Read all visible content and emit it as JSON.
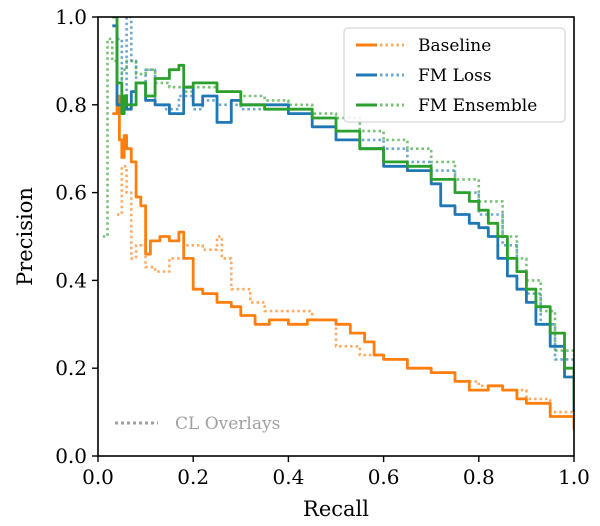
{
  "chart_data": {
    "type": "line",
    "xlabel": "Recall",
    "ylabel": "Precision",
    "xlim": [
      0,
      1
    ],
    "ylim": [
      0,
      1
    ],
    "x_ticks": [
      "0.0",
      "0.2",
      "0.4",
      "0.6",
      "0.8",
      "1.0"
    ],
    "y_ticks": [
      "0.0",
      "0.2",
      "0.4",
      "0.6",
      "0.8",
      "1.0"
    ],
    "grid": false,
    "legend_position": "top-right",
    "overlay_note": "CL Overlays",
    "series": [
      {
        "name": "Baseline",
        "color": "#ff7f0e",
        "style": "solid",
        "x": [
          0.03,
          0.04,
          0.045,
          0.05,
          0.055,
          0.06,
          0.07,
          0.08,
          0.09,
          0.1,
          0.11,
          0.13,
          0.15,
          0.17,
          0.18,
          0.2,
          0.22,
          0.25,
          0.28,
          0.3,
          0.33,
          0.36,
          0.4,
          0.44,
          0.48,
          0.5,
          0.53,
          0.56,
          0.58,
          0.6,
          0.65,
          0.7,
          0.75,
          0.78,
          0.82,
          0.85,
          0.88,
          0.9,
          0.95,
          1.0
        ],
        "y": [
          0.78,
          0.82,
          0.72,
          0.68,
          0.73,
          0.7,
          0.67,
          0.59,
          0.57,
          0.46,
          0.49,
          0.5,
          0.49,
          0.51,
          0.45,
          0.38,
          0.37,
          0.35,
          0.34,
          0.32,
          0.3,
          0.31,
          0.3,
          0.31,
          0.31,
          0.3,
          0.28,
          0.26,
          0.23,
          0.22,
          0.2,
          0.19,
          0.17,
          0.15,
          0.16,
          0.15,
          0.13,
          0.12,
          0.09,
          0.06
        ]
      },
      {
        "name": "Baseline (CL overlay)",
        "color": "#ff7f0e",
        "style": "dotted",
        "x": [
          0.04,
          0.05,
          0.06,
          0.07,
          0.08,
          0.1,
          0.12,
          0.15,
          0.18,
          0.22,
          0.25,
          0.26,
          0.28,
          0.32,
          0.35,
          0.4,
          0.45,
          0.5,
          0.55,
          0.6,
          0.65,
          0.7,
          0.75,
          0.8,
          0.85,
          0.9,
          0.95,
          1.0
        ],
        "y": [
          0.55,
          0.66,
          0.6,
          0.45,
          0.48,
          0.43,
          0.42,
          0.45,
          0.48,
          0.47,
          0.5,
          0.45,
          0.38,
          0.35,
          0.33,
          0.33,
          0.31,
          0.25,
          0.23,
          0.22,
          0.2,
          0.19,
          0.17,
          0.16,
          0.15,
          0.13,
          0.1,
          0.07
        ]
      },
      {
        "name": "FM Loss",
        "color": "#1f77b4",
        "style": "solid",
        "x": [
          0.03,
          0.04,
          0.05,
          0.06,
          0.07,
          0.08,
          0.1,
          0.12,
          0.15,
          0.18,
          0.2,
          0.22,
          0.25,
          0.28,
          0.3,
          0.35,
          0.4,
          0.45,
          0.5,
          0.55,
          0.6,
          0.65,
          0.7,
          0.72,
          0.75,
          0.78,
          0.8,
          0.82,
          0.84,
          0.86,
          0.88,
          0.9,
          0.92,
          0.95,
          0.98,
          1.0
        ],
        "y": [
          0.98,
          0.8,
          0.82,
          0.79,
          0.83,
          0.85,
          0.81,
          0.8,
          0.78,
          0.84,
          0.8,
          0.82,
          0.76,
          0.81,
          0.8,
          0.8,
          0.78,
          0.75,
          0.72,
          0.7,
          0.66,
          0.65,
          0.62,
          0.57,
          0.55,
          0.53,
          0.52,
          0.5,
          0.45,
          0.41,
          0.38,
          0.35,
          0.3,
          0.25,
          0.18,
          0.1
        ]
      },
      {
        "name": "FM Loss (CL overlay)",
        "color": "#1f77b4",
        "style": "dotted",
        "x": [
          0.04,
          0.05,
          0.06,
          0.07,
          0.08,
          0.1,
          0.12,
          0.14,
          0.17,
          0.2,
          0.22,
          0.25,
          0.3,
          0.35,
          0.4,
          0.45,
          0.5,
          0.55,
          0.6,
          0.65,
          0.7,
          0.75,
          0.8,
          0.85,
          0.88,
          0.9,
          0.93,
          0.96,
          1.0
        ],
        "y": [
          0.95,
          0.82,
          1.0,
          0.9,
          0.85,
          0.88,
          0.8,
          0.79,
          0.82,
          0.79,
          0.81,
          0.8,
          0.79,
          0.8,
          0.79,
          0.77,
          0.74,
          0.72,
          0.7,
          0.67,
          0.65,
          0.6,
          0.55,
          0.48,
          0.42,
          0.37,
          0.3,
          0.22,
          0.12
        ]
      },
      {
        "name": "FM Ensemble",
        "color": "#2ca02c",
        "style": "solid",
        "x": [
          0.03,
          0.04,
          0.05,
          0.055,
          0.06,
          0.08,
          0.1,
          0.12,
          0.15,
          0.17,
          0.18,
          0.2,
          0.25,
          0.3,
          0.35,
          0.4,
          0.45,
          0.5,
          0.55,
          0.6,
          0.65,
          0.7,
          0.75,
          0.78,
          0.8,
          0.82,
          0.84,
          0.86,
          0.88,
          0.9,
          0.92,
          0.95,
          0.98,
          1.0
        ],
        "y": [
          1.0,
          0.85,
          0.78,
          0.82,
          0.8,
          0.85,
          0.82,
          0.86,
          0.88,
          0.89,
          0.84,
          0.85,
          0.83,
          0.8,
          0.79,
          0.79,
          0.77,
          0.74,
          0.7,
          0.67,
          0.66,
          0.63,
          0.6,
          0.58,
          0.56,
          0.53,
          0.5,
          0.45,
          0.42,
          0.38,
          0.34,
          0.28,
          0.2,
          0.12
        ]
      },
      {
        "name": "FM Ensemble (CL overlay)",
        "color": "#2ca02c",
        "style": "dotted",
        "x": [
          0.01,
          0.02,
          0.03,
          0.04,
          0.05,
          0.06,
          0.08,
          0.1,
          0.12,
          0.15,
          0.18,
          0.2,
          0.25,
          0.3,
          0.35,
          0.4,
          0.45,
          0.5,
          0.55,
          0.6,
          0.65,
          0.7,
          0.75,
          0.8,
          0.85,
          0.88,
          0.9,
          0.93,
          0.96,
          1.0
        ],
        "y": [
          0.5,
          0.95,
          0.9,
          0.85,
          0.88,
          0.9,
          0.87,
          0.88,
          0.85,
          0.84,
          0.83,
          0.84,
          0.83,
          0.82,
          0.81,
          0.8,
          0.78,
          0.77,
          0.74,
          0.72,
          0.7,
          0.67,
          0.63,
          0.58,
          0.5,
          0.45,
          0.4,
          0.33,
          0.24,
          0.13
        ]
      }
    ],
    "legend_entries": [
      {
        "label": "Baseline",
        "color": "#ff7f0e"
      },
      {
        "label": "FM Loss",
        "color": "#1f77b4"
      },
      {
        "label": "FM Ensemble",
        "color": "#2ca02c"
      }
    ]
  }
}
